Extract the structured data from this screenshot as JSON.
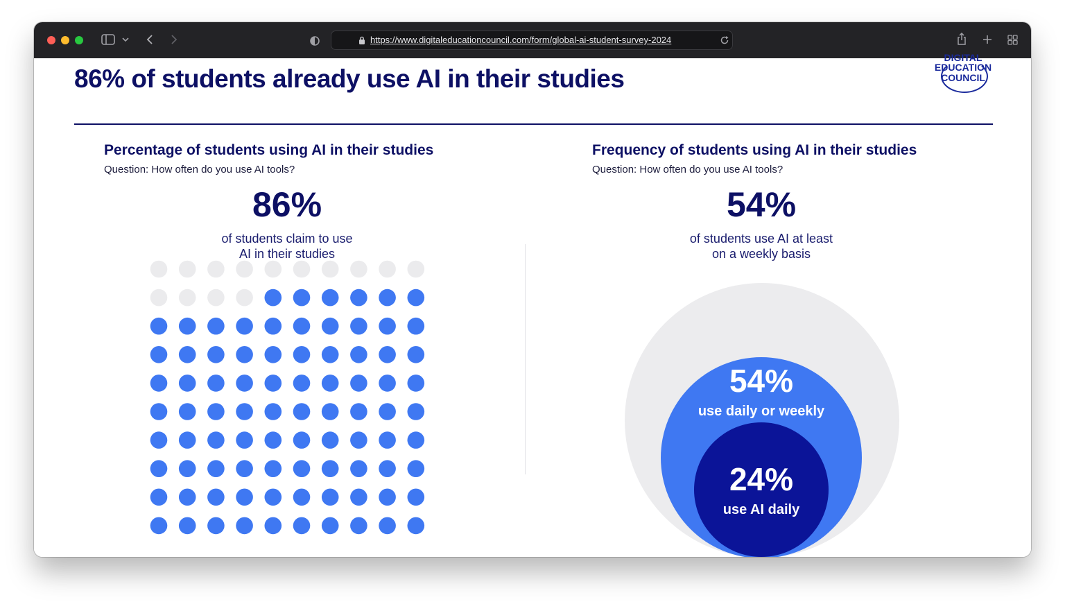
{
  "browser": {
    "url": "https://www.digitaleducationcouncil.com/form/global-ai-student-survey-2024",
    "colors": {
      "close": "#ff5f57",
      "minimize": "#febc2e",
      "zoom": "#28c840"
    },
    "icons": [
      "sidebar-icon",
      "chevron-down-icon",
      "back-icon",
      "forward-icon",
      "privacy-shield-icon",
      "lock-icon",
      "reload-icon",
      "share-icon",
      "new-tab-icon",
      "tab-overview-icon"
    ]
  },
  "page": {
    "title": "86% of students already use AI in their studies",
    "logo": {
      "line0": "DIGITAL",
      "line1": "EDUCATION",
      "line2": "COUNCIL"
    }
  },
  "left_panel": {
    "title": "Percentage of students using AI in their studies",
    "question": "Question: How often do you use AI tools?",
    "big_value": "86%",
    "subtext_line1": "of students claim to use",
    "subtext_line2": "AI in their studies"
  },
  "right_panel": {
    "title": "Frequency of students using AI in their studies",
    "question": "Question: How often do you use AI tools?",
    "big_value": "54%",
    "subtext_line1": "of students use AI at least",
    "subtext_line2": "on a weekly basis",
    "weekly_value": "54%",
    "weekly_label": "use daily or weekly",
    "daily_value": "24%",
    "daily_label": "use AI daily"
  },
  "chart_data": [
    {
      "type": "waffle",
      "total": 100,
      "filled": 86,
      "columns": 10,
      "colors": {
        "filled": "#3f78f2",
        "empty": "#ebebed"
      }
    },
    {
      "type": "nested-circles",
      "values": [
        {
          "label": "use daily or weekly",
          "value": 54,
          "color": "#3f78f2"
        },
        {
          "label": "use AI daily",
          "value": 24,
          "color": "#0b1498"
        }
      ],
      "colors": {
        "background": "#ececee"
      }
    }
  ]
}
